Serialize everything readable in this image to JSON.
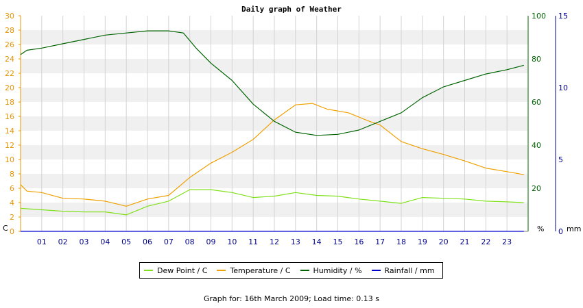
{
  "chart_data": {
    "type": "line",
    "title": "Daily graph of Weather",
    "x_ticks": [
      "01",
      "02",
      "03",
      "04",
      "05",
      "06",
      "07",
      "08",
      "09",
      "10",
      "11",
      "12",
      "13",
      "14",
      "15",
      "16",
      "17",
      "18",
      "19",
      "20",
      "21",
      "22",
      "23"
    ],
    "xlim": [
      0,
      24
    ],
    "axes": {
      "left": {
        "unit_label": "C",
        "ylim": [
          0,
          30
        ],
        "ticks": [
          0,
          2,
          4,
          6,
          8,
          10,
          12,
          14,
          16,
          18,
          20,
          22,
          24,
          26,
          28,
          30
        ],
        "color": "#e69500"
      },
      "right1": {
        "unit_label": "%",
        "ylim": [
          0,
          100
        ],
        "ticks": [
          0,
          20,
          40,
          60,
          80,
          100
        ],
        "color": "#006400"
      },
      "right2": {
        "unit_label": "mm",
        "ylim": [
          0,
          15
        ],
        "ticks": [
          0,
          5,
          10,
          15
        ],
        "color": "#00008b"
      }
    },
    "grid": true,
    "series": [
      {
        "name": "Dew Point / C",
        "axis": "left",
        "color": "#7fe11a",
        "x": [
          0,
          1,
          2,
          3,
          4,
          5,
          6,
          7,
          8,
          9,
          10,
          11,
          12,
          13,
          14,
          15,
          16,
          17,
          18,
          19,
          20,
          21,
          22,
          23,
          23.8
        ],
        "y": [
          3.2,
          3.0,
          2.8,
          2.7,
          2.7,
          2.3,
          3.5,
          4.2,
          5.8,
          5.8,
          5.4,
          4.7,
          4.9,
          5.4,
          5.0,
          4.9,
          4.5,
          4.2,
          3.9,
          4.7,
          4.6,
          4.5,
          4.2,
          4.1,
          4.0
        ]
      },
      {
        "name": "Temperature / C",
        "axis": "left",
        "color": "#f0a000",
        "x": [
          0,
          0.3,
          1,
          2,
          3,
          4,
          5,
          6,
          7,
          8,
          9,
          10,
          11,
          12,
          13,
          13.8,
          14.5,
          15.5,
          16.5,
          17,
          18,
          19,
          20,
          21,
          22,
          23,
          23.8
        ],
        "y": [
          6.5,
          5.6,
          5.4,
          4.6,
          4.5,
          4.2,
          3.5,
          4.5,
          5.0,
          7.5,
          9.5,
          11.0,
          12.8,
          15.5,
          17.6,
          17.8,
          17.0,
          16.5,
          15.3,
          14.8,
          12.5,
          11.5,
          10.7,
          9.8,
          8.8,
          8.3,
          7.9
        ]
      },
      {
        "name": "Humidity / %",
        "axis": "right1",
        "color": "#006400",
        "x": [
          0,
          0.3,
          1,
          2,
          3,
          4,
          5,
          6,
          7,
          7.7,
          8.3,
          9,
          10,
          11,
          12,
          13,
          14,
          15,
          16,
          17,
          18,
          19,
          20,
          21,
          22,
          23,
          23.8
        ],
        "y": [
          82,
          84,
          85,
          87,
          89,
          91,
          92,
          93,
          93,
          92,
          85,
          78,
          70,
          59,
          51,
          46,
          44.5,
          45,
          47,
          51,
          55,
          62,
          67,
          70,
          73,
          75,
          77
        ]
      },
      {
        "name": "Rainfall / mm",
        "axis": "right2",
        "color": "#0000cd",
        "x": [
          0,
          23.8
        ],
        "y": [
          0,
          0
        ]
      }
    ],
    "legend_position": "bottom"
  },
  "legend": [
    {
      "label": "Dew Point / C",
      "color": "#7fe11a"
    },
    {
      "label": "Temperature / C",
      "color": "#f0a000"
    },
    {
      "label": "Humidity / %",
      "color": "#006400"
    },
    {
      "label": "Rainfall / mm",
      "color": "#0000cd"
    }
  ],
  "footer": "Graph for: 16th March 2009; Load time: 0.13 s"
}
